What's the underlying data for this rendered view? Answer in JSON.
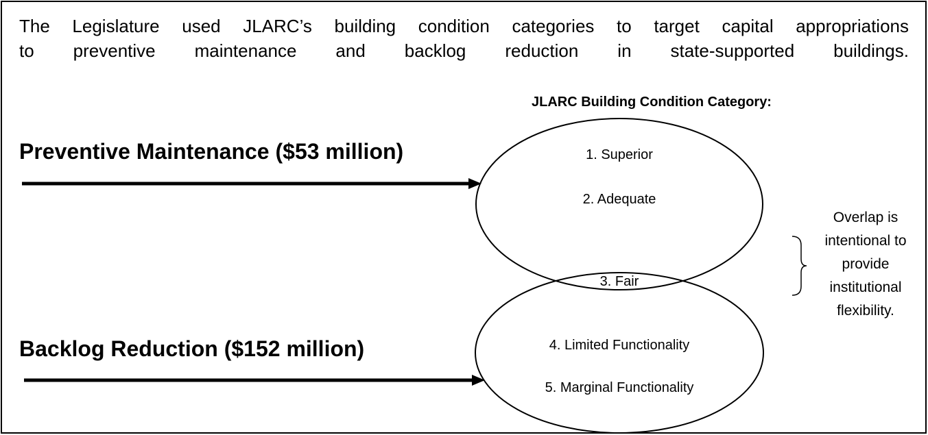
{
  "intro_lines": [
    "The Legislature used JLARC’s building condition categories to target capital appropriations",
    "to preventive maintenance and backlog reduction in state-supported buildings."
  ],
  "heading": "JLARC Building Condition Category:",
  "flows": [
    {
      "label": "Preventive Maintenance ($53 million)"
    },
    {
      "label": "Backlog Reduction ($152 million)"
    }
  ],
  "categories": [
    "1.  Superior",
    "2.  Adequate",
    "3.  Fair",
    "4.  Limited Functionality",
    "5.  Marginal Functionality"
  ],
  "note_lines": [
    "Overlap is",
    "intentional to",
    "provide",
    "institutional",
    "flexibility."
  ]
}
